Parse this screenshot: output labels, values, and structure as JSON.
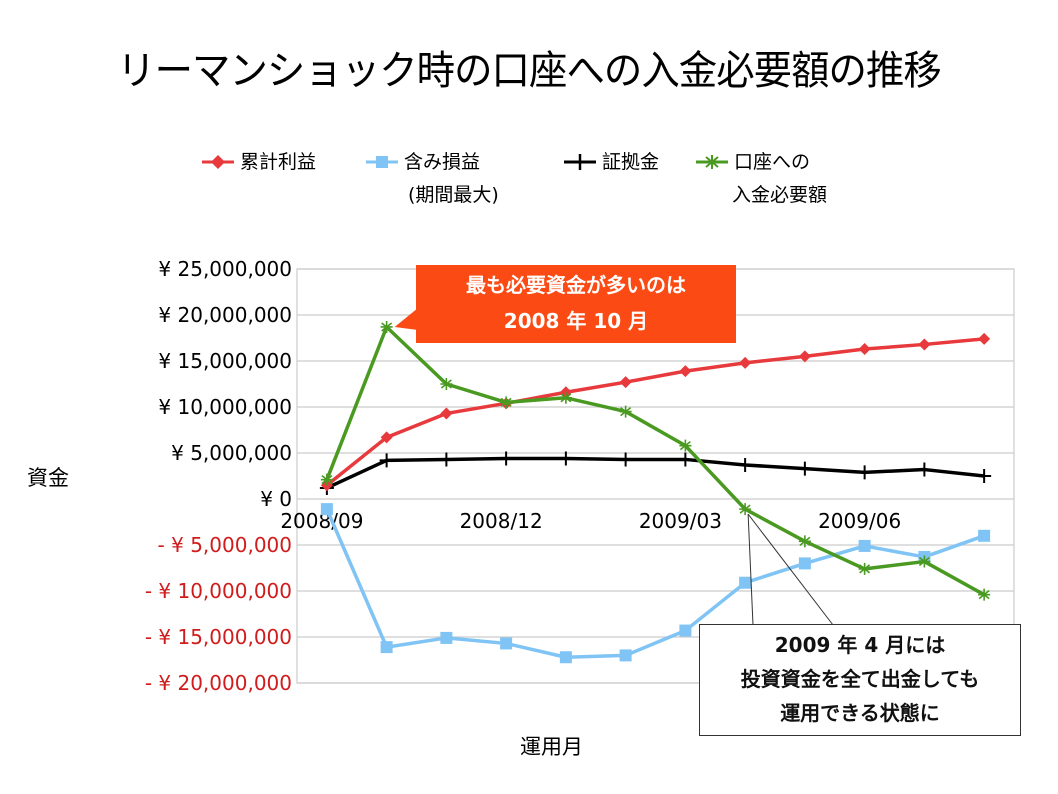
{
  "title": "リーマンショック時の口座への入金必要額の推移",
  "legend": [
    {
      "label": "累計利益",
      "label2": "",
      "color": "#e8393d",
      "marker": "diamond"
    },
    {
      "label": "含み損益",
      "label2": "(期間最大)",
      "color": "#7fc4f5",
      "marker": "square"
    },
    {
      "label": "証拠金",
      "label2": "",
      "color": "#000000",
      "marker": "plus"
    },
    {
      "label": "口座への",
      "label2": "入金必要額",
      "color": "#4a9a22",
      "marker": "asterisk"
    }
  ],
  "axis": {
    "ylabel": "資金",
    "xlabel": "運用月"
  },
  "callouts": {
    "peak_line1": "最も必要資金が多いのは",
    "peak_line2": "2008 年 10 月",
    "april_line1": "2009 年 4 月には",
    "april_line2": "投資資金を全て出金しても",
    "april_line3": "運用できる状態に"
  },
  "colors": {
    "callout_accent": "#fc4a14",
    "negative_tick": "#d01c1c",
    "grid": "#cccccc"
  },
  "chart_data": {
    "type": "line",
    "title": "リーマンショック時の口座への入金必要額の推移",
    "xlabel": "運用月",
    "ylabel": "資金",
    "x": [
      "2008/09",
      "2008/10",
      "2008/11",
      "2008/12",
      "2009/01",
      "2009/02",
      "2009/03",
      "2009/04",
      "2009/05",
      "2009/06",
      "2009/07",
      "2009/08"
    ],
    "x_tick_labels": [
      "2008/09",
      "2008/12",
      "2009/03",
      "2009/06"
    ],
    "x_tick_indices": [
      0,
      3,
      6,
      9
    ],
    "ylim": [
      -20000000,
      25000000
    ],
    "y_ticks": [
      25000000,
      20000000,
      15000000,
      10000000,
      5000000,
      0,
      -5000000,
      -10000000,
      -15000000,
      -20000000
    ],
    "y_tick_labels": [
      "¥ 25,000,000",
      "¥ 20,000,000",
      "¥ 15,000,000",
      "¥ 10,000,000",
      "¥ 5,000,000",
      "¥ 0",
      "- ¥ 5,000,000",
      "- ¥ 10,000,000",
      "- ¥ 15,000,000",
      "- ¥ 20,000,000"
    ],
    "grid": true,
    "legend_position": "top",
    "series": [
      {
        "name": "累計利益",
        "color": "#e8393d",
        "marker": "diamond",
        "values": [
          1500000,
          6700000,
          9300000,
          10400000,
          11600000,
          12700000,
          13900000,
          14800000,
          15500000,
          16300000,
          16800000,
          17400000
        ]
      },
      {
        "name": "含み損益(期間最大)",
        "color": "#7fc4f5",
        "marker": "square",
        "values": [
          -1100000,
          -16100000,
          -15100000,
          -15700000,
          -17200000,
          -17000000,
          -14300000,
          -9100000,
          -7000000,
          -5100000,
          -6300000,
          -4000000
        ]
      },
      {
        "name": "証拠金",
        "color": "#000000",
        "marker": "plus",
        "values": [
          1200000,
          4200000,
          4300000,
          4400000,
          4400000,
          4300000,
          4300000,
          3700000,
          3300000,
          2900000,
          3200000,
          2500000
        ]
      },
      {
        "name": "口座への入金必要額",
        "color": "#4a9a22",
        "marker": "asterisk",
        "values": [
          2100000,
          18700000,
          12500000,
          10500000,
          11000000,
          9500000,
          5800000,
          -1100000,
          -4600000,
          -7600000,
          -6800000,
          -10400000
        ]
      }
    ],
    "annotations": [
      {
        "text": "最も必要資金が多いのは 2008 年 10 月",
        "points_to": "2008/10"
      },
      {
        "text": "2009 年 4 月には 投資資金を全て出金しても 運用できる状態に",
        "points_to": "2009/04"
      }
    ]
  }
}
